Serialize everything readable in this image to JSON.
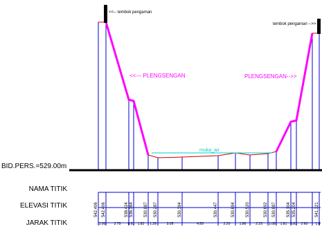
{
  "annotations": {
    "wall_left": "<<-- tembok pengaman",
    "wall_right": "tembok pengaman -->>",
    "slope_left": "<<--- PLENGSENGAN",
    "slope_right": "PLENGSENGAN-->>",
    "water": "muka_air",
    "datum": "BID.PERS.=529.00m"
  },
  "table": {
    "row1": "NAMA TITIK",
    "row2": "ELEVASI TITIK",
    "row3": "JARAK TITIK"
  },
  "elevations": [
    "542.406",
    "542.406",
    "538.424",
    "536.364",
    "530.887",
    "530.287",
    "530.394",
    "530.447",
    "530.694",
    "530.520",
    "530.692",
    "530.887",
    "535.104",
    "535.204",
    "541.321"
  ],
  "distances": [
    "1.00",
    "2.79",
    "0.61",
    "1.82",
    "1.28",
    "3.05",
    "4.59",
    "2.20",
    "1.86",
    "2.23",
    "1.08",
    "1.81",
    "0.81",
    "2.60",
    "1.0"
  ],
  "colors": {
    "slope": "#ff00ff",
    "stations": "#0000cc",
    "ground": "#cc0000",
    "water": "#00cccc",
    "wall": "#000000"
  }
}
